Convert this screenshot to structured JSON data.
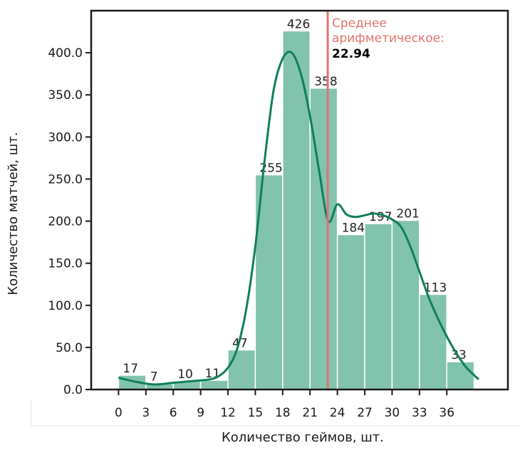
{
  "chart_data": {
    "type": "bar",
    "title": "",
    "xlabel": "Количество геймов, шт.",
    "ylabel": "Количество матчей, шт.",
    "bin_width": 3,
    "bins_start": [
      0,
      3,
      6,
      9,
      12,
      15,
      18,
      21,
      24,
      27,
      30,
      33,
      36
    ],
    "values": [
      17,
      7,
      10,
      11,
      47,
      255,
      426,
      358,
      184,
      197,
      201,
      113,
      33
    ],
    "data_labels": [
      "17",
      "7",
      "10",
      "11",
      "47",
      "255",
      "426",
      "358",
      "184",
      "197",
      "201",
      "113",
      "33"
    ],
    "xlim": [
      -3,
      42.7
    ],
    "ylim": [
      0,
      450
    ],
    "x_ticks": [
      "0",
      "3",
      "6",
      "9",
      "12",
      "15",
      "18",
      "21",
      "24",
      "27",
      "30",
      "33",
      "36"
    ],
    "y_ticks": [
      "0.0",
      "50.0",
      "100.0",
      "150.0",
      "200.0",
      "250.0",
      "300.0",
      "350.0",
      "400.0"
    ],
    "kde": {
      "x": [
        0,
        2,
        4,
        6,
        8,
        10,
        11,
        12,
        13,
        14,
        15,
        16,
        17,
        18,
        19,
        20,
        21,
        22,
        23,
        24,
        25,
        26,
        27,
        28,
        29,
        30,
        31,
        32,
        33,
        34,
        35,
        36,
        37,
        38,
        39,
        39.5
      ],
      "y": [
        14,
        9,
        6,
        8,
        10,
        12,
        16,
        26,
        48,
        95,
        170,
        270,
        355,
        393,
        400,
        375,
        325,
        260,
        200,
        220,
        208,
        205,
        207,
        209,
        207,
        202,
        193,
        170,
        140,
        110,
        85,
        63,
        44,
        28,
        17,
        12
      ]
    },
    "mean": {
      "value": 22.94,
      "label": "Среднее арифметическое:",
      "label_lines": [
        "Среднее",
        "арифметическое:"
      ],
      "value_label": "22.94"
    },
    "colors": {
      "bar_fill": "#82c3ae",
      "bar_edge": "#ffffff",
      "kde_line": "#0f7f5c",
      "mean_line": "#e0736b",
      "axes": "#1a1a1a"
    },
    "grid": false,
    "legend": "none"
  }
}
